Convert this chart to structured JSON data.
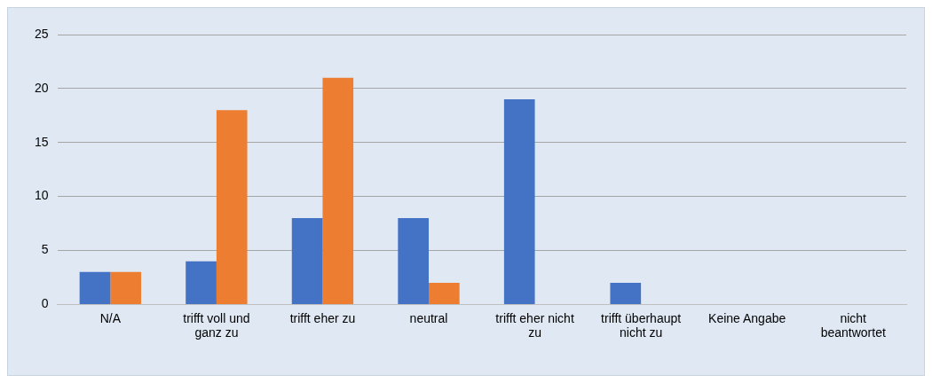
{
  "chart_data": {
    "type": "bar",
    "categories": [
      "N/A",
      "trifft voll und ganz zu",
      "trifft eher zu",
      "neutral",
      "trifft eher nicht zu",
      "trifft überhaupt nicht zu",
      "Keine Angabe",
      "nicht beantwortet"
    ],
    "series": [
      {
        "color": "#4472c4",
        "values": [
          3,
          4,
          8,
          8,
          19,
          2,
          0,
          0
        ]
      },
      {
        "color": "#ed7d31",
        "values": [
          3,
          18,
          21,
          2,
          0,
          0,
          0,
          0
        ]
      }
    ],
    "ylim": [
      0,
      25
    ],
    "yticks": [
      0,
      5,
      10,
      15,
      20,
      25
    ],
    "grid": "y",
    "legend": false
  }
}
